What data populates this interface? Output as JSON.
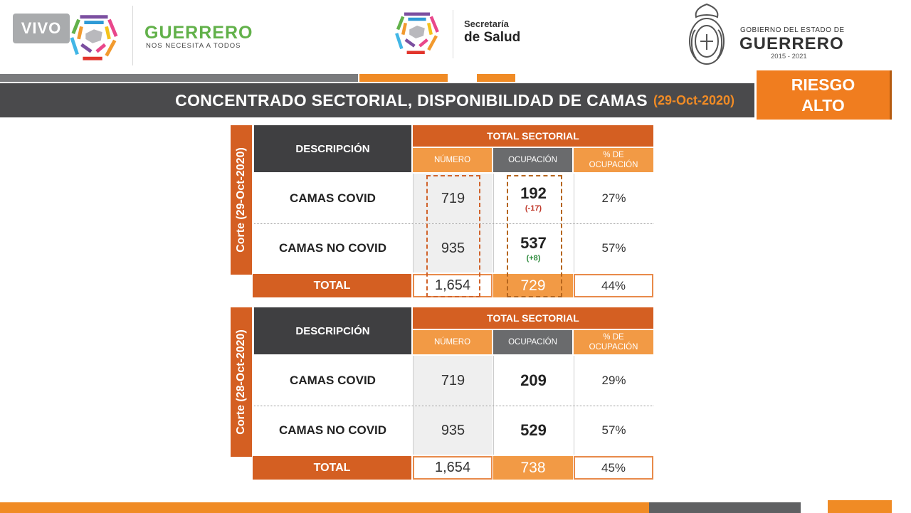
{
  "live_badge": "VIVO",
  "header": {
    "brand_main": "GUERRERO",
    "brand_sub": "NOS NECESITA A TODOS",
    "salud_small": "Secretaría",
    "salud_big": "de Salud",
    "gov_small": "GOBIERNO DEL ESTADO DE",
    "gov_big": "GUERRERO",
    "gov_years": "2015 - 2021"
  },
  "title": {
    "text": "CONCENTRADO SECTORIAL, DISPONIBILIDAD DE CAMAS",
    "date": "(29-Oct-2020)"
  },
  "risk": {
    "line1": "RIESGO",
    "line2": "ALTO"
  },
  "tables": [
    {
      "corte": "Corte (29-Oct-2020)",
      "desc_header": "DESCRIPCIÓN",
      "group_header": "TOTAL SECTORIAL",
      "col_numero": "NÚMERO",
      "col_ocupacion": "OCUPACIÓN",
      "col_pct_1": "% DE",
      "col_pct_2": "OCUPACIÓN",
      "rows": [
        {
          "label": "CAMAS COVID",
          "numero": "719",
          "ocupacion": "192",
          "delta": "(-17)",
          "pct": "27%"
        },
        {
          "label": "CAMAS NO COVID",
          "numero": "935",
          "ocupacion": "537",
          "delta": "(+8)",
          "pct": "57%"
        }
      ],
      "total": {
        "label": "TOTAL",
        "numero": "1,654",
        "ocupacion": "729",
        "pct": "44%"
      }
    },
    {
      "corte": "Corte (28-Oct-2020)",
      "desc_header": "DESCRIPCIÓN",
      "group_header": "TOTAL SECTORIAL",
      "col_numero": "NÚMERO",
      "col_ocupacion": "OCUPACIÓN",
      "col_pct_1": "% DE",
      "col_pct_2": "OCUPACIÓN",
      "rows": [
        {
          "label": "CAMAS COVID",
          "numero": "719",
          "ocupacion": "209",
          "pct": "29%"
        },
        {
          "label": "CAMAS NO COVID",
          "numero": "935",
          "ocupacion": "529",
          "pct": "57%"
        }
      ],
      "total": {
        "label": "TOTAL",
        "numero": "1,654",
        "ocupacion": "738",
        "pct": "45%"
      }
    }
  ],
  "colors": {
    "accent_orange": "#f08b25",
    "dark_orange": "#d45f22",
    "dark_grey": "#3f3f41",
    "brand_green": "#62b14a"
  }
}
